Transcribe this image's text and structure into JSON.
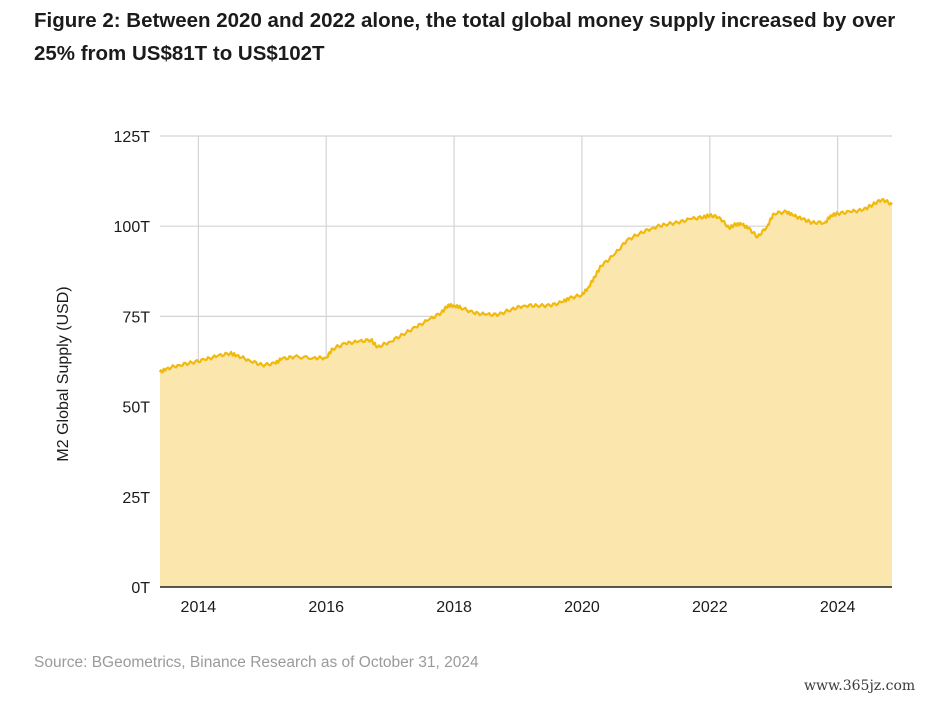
{
  "figure": {
    "title": "Figure 2: Between 2020 and 2022 alone, the total global money supply increased by over 25% from US$81T to US$102T",
    "source": "Source: BGeometrics, Binance Research as of October 31, 2024",
    "watermark": "www.365jz.com"
  },
  "colors": {
    "line": "#f0b90b",
    "fill": "#fbe7ae",
    "grid": "#d4d4d4"
  },
  "chart_data": {
    "type": "area",
    "title": "Figure 2: Between 2020 and 2022 alone, the total global money supply increased by over 25% from US$81T to US$102T",
    "xlabel": "",
    "ylabel": "M2 Global Supply (USD)",
    "xlim": [
      2013.4,
      2024.85
    ],
    "ylim": [
      0,
      125
    ],
    "y_unit": "trillion USD",
    "grid": true,
    "x_ticks": [
      2014,
      2016,
      2018,
      2020,
      2022,
      2024
    ],
    "x_tick_labels": [
      "2014",
      "2016",
      "2018",
      "2020",
      "2022",
      "2024"
    ],
    "y_ticks": [
      0,
      25,
      50,
      75,
      100,
      125
    ],
    "y_tick_labels": [
      "0T",
      "25T",
      "50T",
      "75T",
      "100T",
      "125T"
    ],
    "series": [
      {
        "name": "M2 Global Supply",
        "x": [
          2013.4,
          2013.5,
          2013.7,
          2013.9,
          2014.1,
          2014.3,
          2014.5,
          2014.6,
          2014.8,
          2015.0,
          2015.2,
          2015.3,
          2015.5,
          2015.8,
          2016.0,
          2016.1,
          2016.3,
          2016.5,
          2016.7,
          2016.8,
          2017.0,
          2017.2,
          2017.4,
          2017.6,
          2017.8,
          2017.9,
          2018.0,
          2018.1,
          2018.3,
          2018.5,
          2018.7,
          2018.9,
          2019.1,
          2019.3,
          2019.5,
          2019.7,
          2019.8,
          2020.0,
          2020.1,
          2020.2,
          2020.3,
          2020.5,
          2020.7,
          2020.9,
          2021.1,
          2021.3,
          2021.5,
          2021.7,
          2021.9,
          2022.0,
          2022.15,
          2022.3,
          2022.4,
          2022.5,
          2022.6,
          2022.75,
          2022.9,
          2023.0,
          2023.2,
          2023.3,
          2023.45,
          2023.6,
          2023.8,
          2023.9,
          2024.0,
          2024.2,
          2024.4,
          2024.55,
          2024.7,
          2024.85
        ],
        "values": [
          59.5,
          60.5,
          61.5,
          62.2,
          63.0,
          64.0,
          64.8,
          64.2,
          62.8,
          61.5,
          62.0,
          63.2,
          63.8,
          63.5,
          63.5,
          66.0,
          67.5,
          68.0,
          68.5,
          66.5,
          68.0,
          70.0,
          72.0,
          74.0,
          76.0,
          78.0,
          78.0,
          77.5,
          76.0,
          75.5,
          75.5,
          77.0,
          78.0,
          78.0,
          78.0,
          79.0,
          80.0,
          81.0,
          83.0,
          86.0,
          89.0,
          92.0,
          96.0,
          98.0,
          99.5,
          100.5,
          101.0,
          102.0,
          102.5,
          103.0,
          102.5,
          99.5,
          100.5,
          100.5,
          99.5,
          97.0,
          100.0,
          103.5,
          104.0,
          103.0,
          102.0,
          101.0,
          101.0,
          103.0,
          103.5,
          104.0,
          104.5,
          106.0,
          107.5,
          106.0
        ]
      }
    ]
  }
}
